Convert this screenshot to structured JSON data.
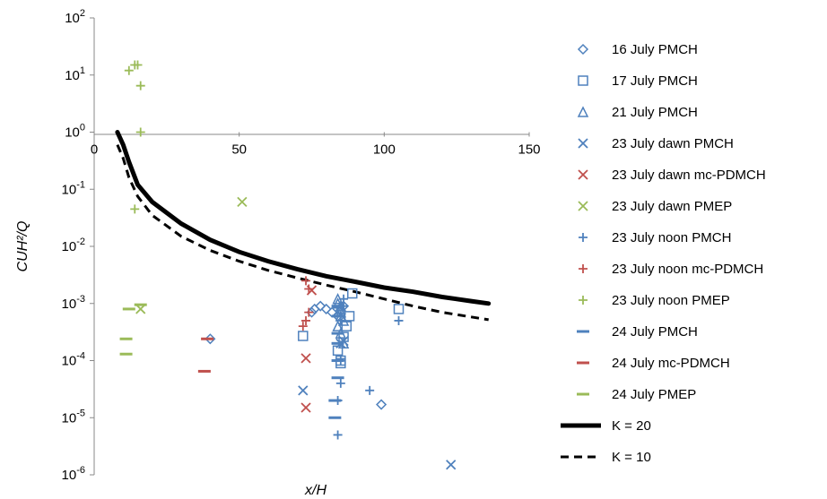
{
  "chart_data": {
    "type": "scatter",
    "xlabel": "x/H",
    "ylabel": "CUH²/Q",
    "xlim": [
      0,
      150
    ],
    "ylim": [
      1e-06,
      100
    ],
    "yscale": "log",
    "x_ticks": [
      "0",
      "50",
      "100",
      "150"
    ],
    "y_ticks": [
      {
        "base": "10",
        "exp": "2",
        "value": 100
      },
      {
        "base": "10",
        "exp": "1",
        "value": 10
      },
      {
        "base": "10",
        "exp": "0",
        "value": 1
      },
      {
        "base": "10",
        "exp": "-1",
        "value": 0.1
      },
      {
        "base": "10",
        "exp": "-2",
        "value": 0.01
      },
      {
        "base": "10",
        "exp": "-3",
        "value": 0.001
      },
      {
        "base": "10",
        "exp": "-4",
        "value": 0.0001
      },
      {
        "base": "10",
        "exp": "-5",
        "value": 1e-05
      },
      {
        "base": "10",
        "exp": "-6",
        "value": 1e-06
      }
    ],
    "grid": false,
    "legend_position": "right",
    "series": [
      {
        "name": "16 July PMCH",
        "marker": "diamond",
        "color": "#4f81bd",
        "points": [
          [
            40,
            0.00024
          ],
          [
            75,
            0.0007
          ],
          [
            76,
            0.0008
          ],
          [
            78,
            0.0009
          ],
          [
            80,
            0.0008
          ],
          [
            82,
            0.0007
          ],
          [
            84,
            0.0006
          ],
          [
            86,
            0.0009
          ],
          [
            99,
            1.7e-05
          ]
        ]
      },
      {
        "name": "17 July PMCH",
        "marker": "square",
        "color": "#4f81bd",
        "points": [
          [
            72,
            0.00027
          ],
          [
            84,
            0.00015
          ],
          [
            85,
            0.0001
          ],
          [
            85,
            9e-05
          ],
          [
            86,
            0.00026
          ],
          [
            87,
            0.0004
          ],
          [
            88,
            0.0006
          ],
          [
            89,
            0.0015
          ],
          [
            105,
            0.0008
          ]
        ]
      },
      {
        "name": "21 July PMCH",
        "marker": "triangle",
        "color": "#4f81bd",
        "points": [
          [
            84,
            0.0012
          ],
          [
            84,
            0.001
          ],
          [
            85,
            0.0009
          ],
          [
            85,
            0.0008
          ],
          [
            85,
            0.0007
          ],
          [
            85,
            0.0006
          ],
          [
            86,
            0.0005
          ],
          [
            84,
            0.0004
          ],
          [
            85,
            0.0003
          ],
          [
            86,
            0.0002
          ]
        ]
      },
      {
        "name": "23 July dawn PMCH",
        "marker": "x",
        "color": "#4f81bd",
        "points": [
          [
            72,
            3e-05
          ],
          [
            85,
            0.0002
          ],
          [
            86,
            0.00022
          ],
          [
            123,
            1.5e-06
          ]
        ]
      },
      {
        "name": "23 July dawn mc-PDMCH",
        "marker": "x",
        "color": "#c0504d",
        "points": [
          [
            73,
            0.00011
          ],
          [
            73,
            1.5e-05
          ],
          [
            75,
            0.0017
          ]
        ]
      },
      {
        "name": "23 July dawn PMEP",
        "marker": "x",
        "color": "#9bbb59",
        "points": [
          [
            16,
            0.0008
          ],
          [
            51,
            0.06
          ]
        ]
      },
      {
        "name": "23 July noon PMCH",
        "marker": "plus",
        "color": "#4f81bd",
        "points": [
          [
            84,
            5e-06
          ],
          [
            84,
            2e-05
          ],
          [
            85,
            4e-05
          ],
          [
            85,
            0.0001
          ],
          [
            85,
            0.0005
          ],
          [
            86,
            0.0009
          ],
          [
            86,
            0.0012
          ],
          [
            95,
            3e-05
          ],
          [
            105,
            0.0005
          ]
        ]
      },
      {
        "name": "23 July noon mc-PDMCH",
        "marker": "plus",
        "color": "#c0504d",
        "points": [
          [
            73,
            0.0025
          ],
          [
            74,
            0.0018
          ],
          [
            74,
            0.0007
          ],
          [
            73,
            0.0005
          ],
          [
            72,
            0.0004
          ]
        ]
      },
      {
        "name": "23 July noon PMEP",
        "marker": "plus",
        "color": "#9bbb59",
        "points": [
          [
            12,
            12
          ],
          [
            14,
            15
          ],
          [
            15,
            15
          ],
          [
            16,
            6.5
          ],
          [
            16,
            1
          ],
          [
            14,
            0.045
          ]
        ]
      },
      {
        "name": "24 July PMCH",
        "marker": "dash",
        "color": "#4f81bd",
        "points": [
          [
            83,
            1e-05
          ],
          [
            83,
            2e-05
          ],
          [
            84,
            5e-05
          ],
          [
            84,
            0.0001
          ],
          [
            84,
            0.0002
          ],
          [
            84,
            0.0003
          ],
          [
            84,
            0.0006
          ],
          [
            84,
            0.0009
          ]
        ]
      },
      {
        "name": "24 July mc-PDMCH",
        "marker": "dash",
        "color": "#c0504d",
        "points": [
          [
            39,
            0.00024
          ],
          [
            38,
            6.5e-05
          ]
        ]
      },
      {
        "name": "24 July PMEP",
        "marker": "dash",
        "color": "#9bbb59",
        "points": [
          [
            11,
            0.00024
          ],
          [
            11,
            0.00013
          ],
          [
            12,
            0.0008
          ],
          [
            16,
            0.00095
          ]
        ]
      }
    ],
    "lines": [
      {
        "name": "K = 20",
        "style": "solid",
        "width": 5,
        "color": "#000000",
        "points": [
          [
            8,
            1
          ],
          [
            10,
            0.6
          ],
          [
            12,
            0.3
          ],
          [
            15,
            0.12
          ],
          [
            20,
            0.06
          ],
          [
            30,
            0.025
          ],
          [
            40,
            0.013
          ],
          [
            50,
            0.008
          ],
          [
            60,
            0.0055
          ],
          [
            70,
            0.004
          ],
          [
            80,
            0.003
          ],
          [
            90,
            0.0024
          ],
          [
            100,
            0.0019
          ],
          [
            110,
            0.0016
          ],
          [
            120,
            0.0013
          ],
          [
            130,
            0.0011
          ],
          [
            136,
            0.001
          ]
        ]
      },
      {
        "name": "K = 10",
        "style": "dashed",
        "width": 3,
        "color": "#000000",
        "points": [
          [
            8,
            0.6
          ],
          [
            10,
            0.35
          ],
          [
            12,
            0.16
          ],
          [
            15,
            0.075
          ],
          [
            20,
            0.035
          ],
          [
            30,
            0.015
          ],
          [
            40,
            0.0085
          ],
          [
            50,
            0.0055
          ],
          [
            60,
            0.0038
          ],
          [
            70,
            0.0028
          ],
          [
            80,
            0.0021
          ],
          [
            90,
            0.0016
          ],
          [
            100,
            0.0012
          ],
          [
            110,
            0.0009
          ],
          [
            120,
            0.0007
          ],
          [
            130,
            0.00058
          ],
          [
            136,
            0.00052
          ]
        ]
      }
    ]
  }
}
